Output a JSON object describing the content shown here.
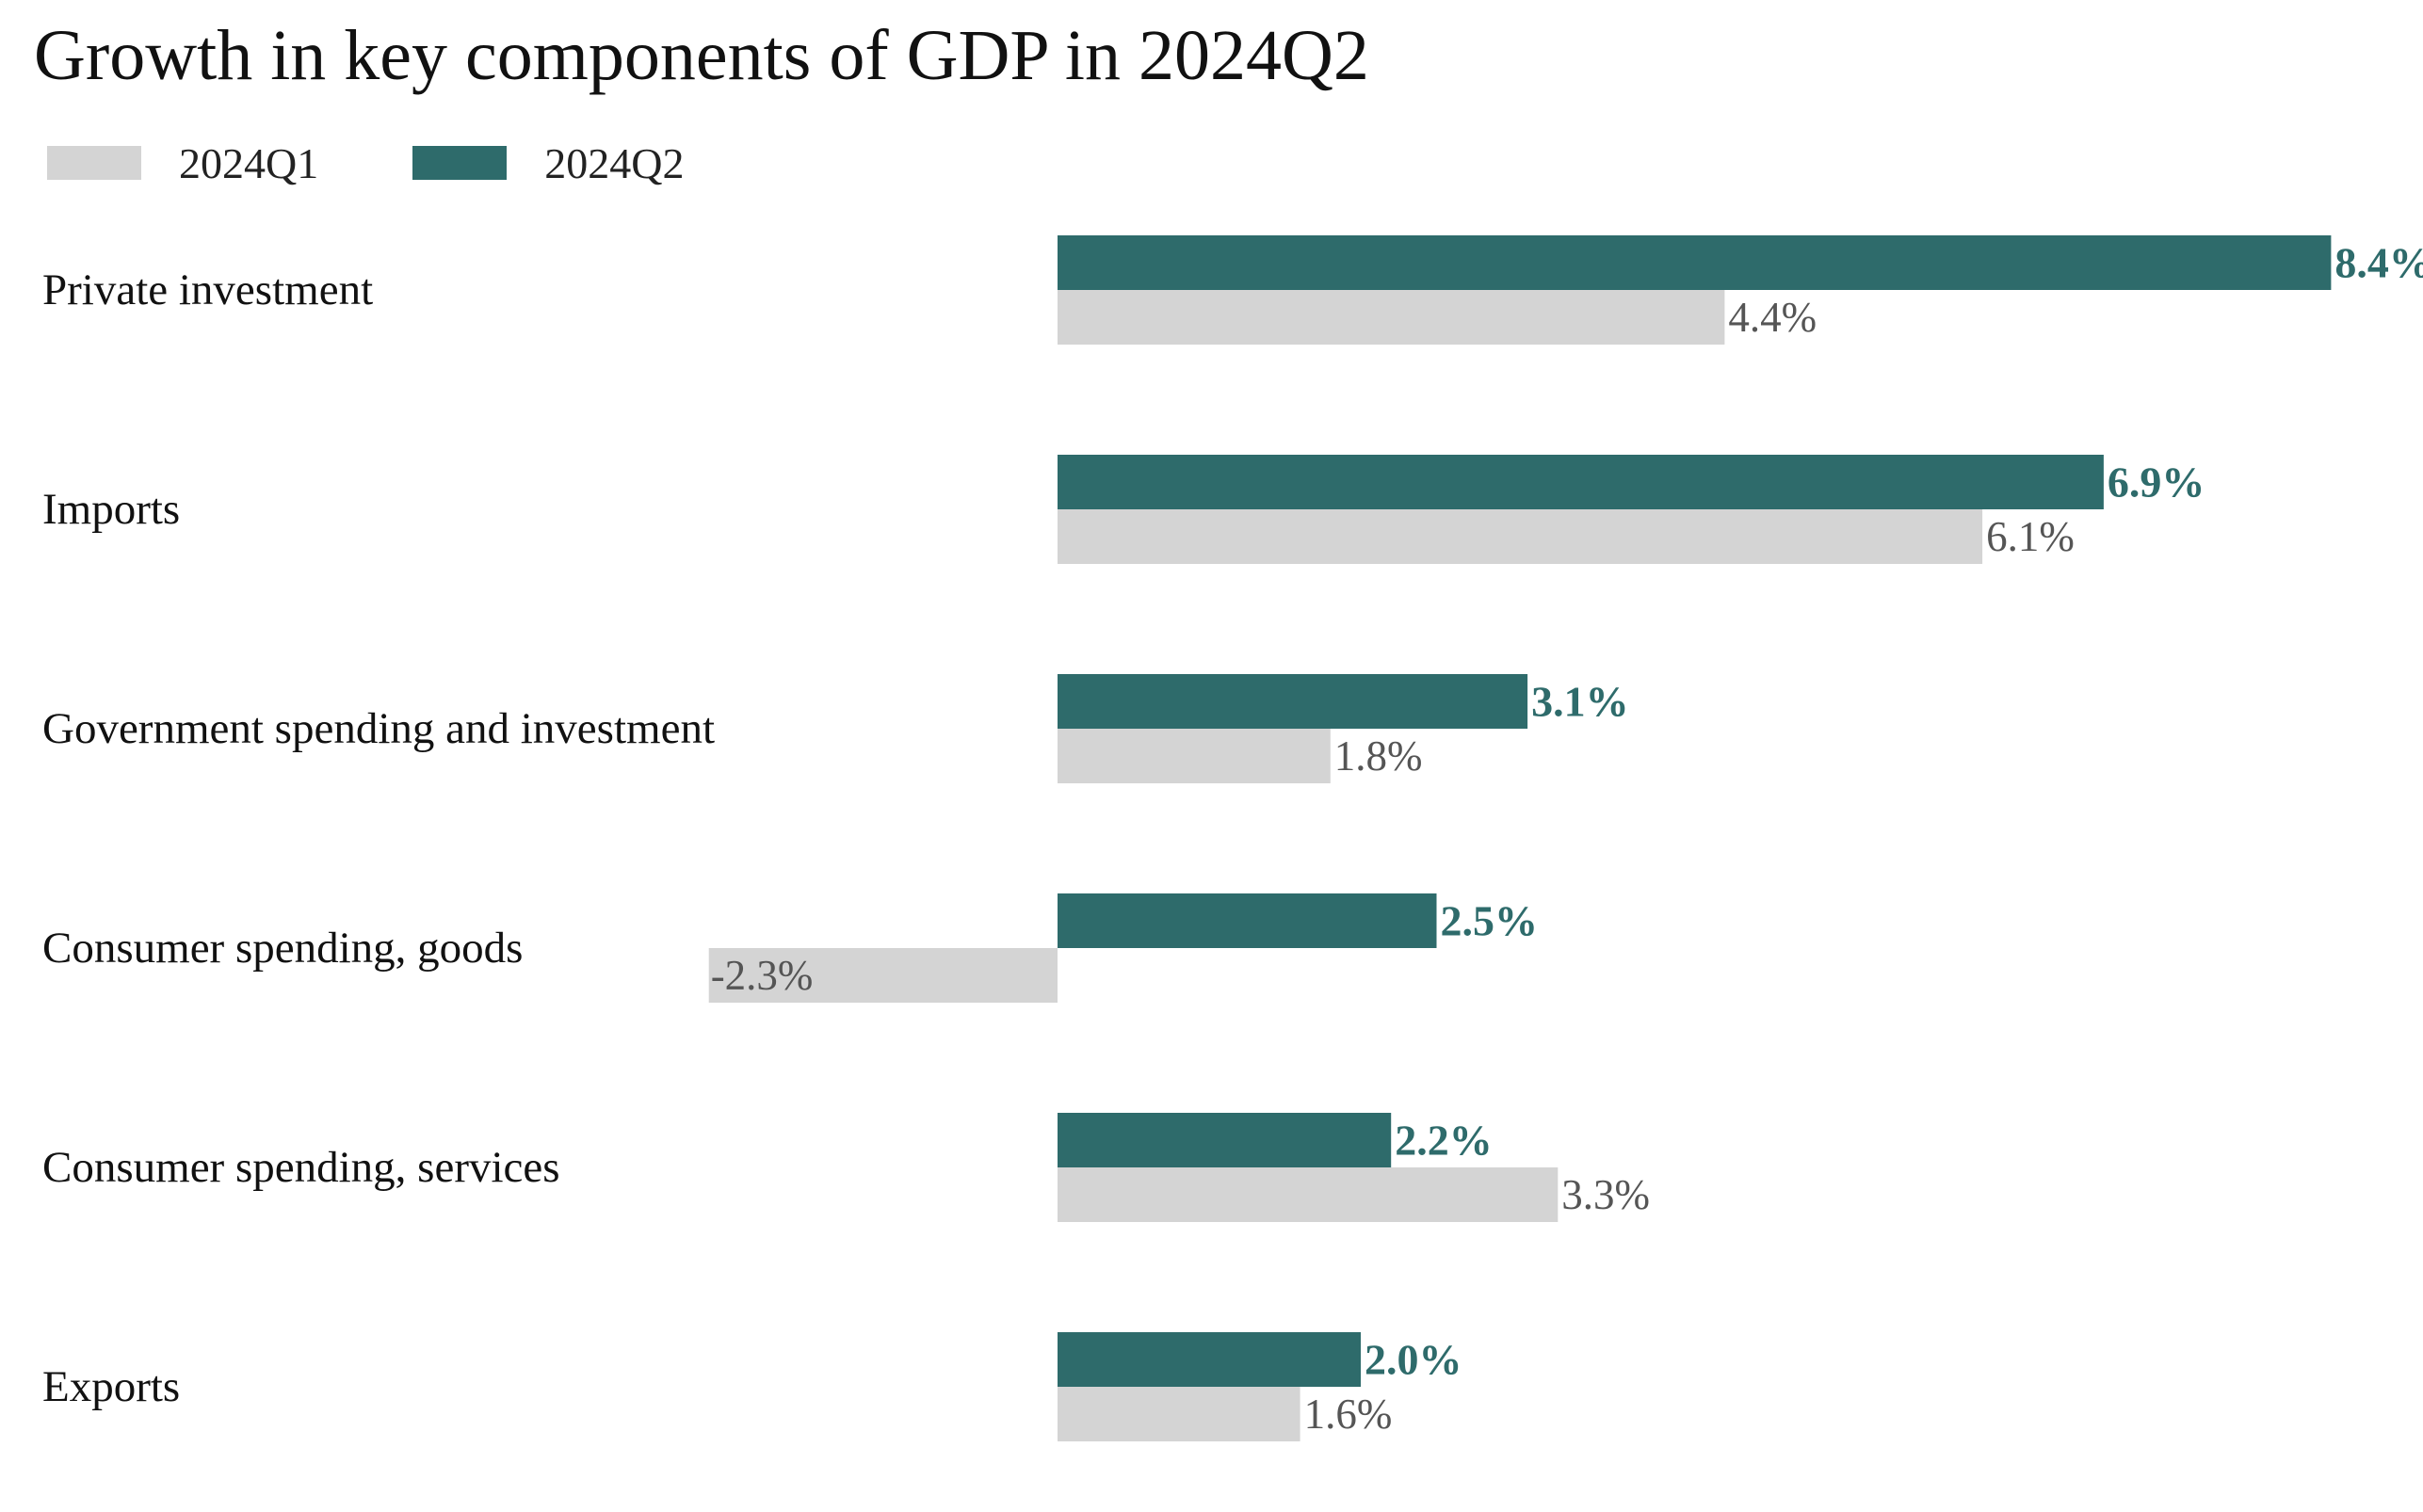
{
  "title": "Growth in key components of GDP in 2024Q2",
  "legend": [
    {
      "label": "2024Q1",
      "color": "#d4d4d4"
    },
    {
      "label": "2024Q2",
      "color": "#2e6b6b"
    }
  ],
  "chart_data": {
    "type": "bar",
    "orientation": "horizontal",
    "title": "Growth in key components of GDP in 2024Q2",
    "categories": [
      "Private investment",
      "Imports",
      "Government spending and investment",
      "Consumer spending, goods",
      "Consumer spending, services",
      "Exports"
    ],
    "series": [
      {
        "name": "2024Q2",
        "color": "#2e6b6b",
        "values": [
          8.4,
          6.9,
          3.1,
          2.5,
          2.2,
          2.0
        ],
        "labels": [
          "8.4%",
          "6.9%",
          "3.1%",
          "2.5%",
          "2.2%",
          "2.0%"
        ]
      },
      {
        "name": "2024Q1",
        "color": "#d4d4d4",
        "values": [
          4.4,
          6.1,
          1.8,
          -2.3,
          3.3,
          1.6
        ],
        "labels": [
          "4.4%",
          "6.1%",
          "1.8%",
          "-2.3%",
          "3.3%",
          "1.6%"
        ]
      }
    ],
    "xlim": [
      -2.3,
      8.4
    ],
    "unit": "%",
    "grid": false,
    "legend_position": "top-left"
  }
}
